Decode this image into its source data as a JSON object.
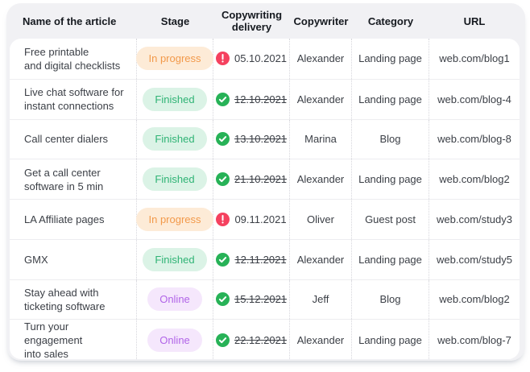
{
  "table": {
    "columns": [
      {
        "key": "name",
        "label": "Name of the article"
      },
      {
        "key": "stage",
        "label": "Stage"
      },
      {
        "key": "delivery",
        "label": "Copywriting delivery"
      },
      {
        "key": "copywriter",
        "label": "Copywriter"
      },
      {
        "key": "category",
        "label": "Category"
      },
      {
        "key": "url",
        "label": "URL"
      }
    ],
    "rows": [
      {
        "name": "Free printable\nand digital checklists",
        "stage": "In progress",
        "stage_type": "in_progress",
        "delivery_date": "05.10.2021",
        "delivery_status": "overdue",
        "copywriter": "Alexander",
        "category": "Landing page",
        "url": "web.com/blog1"
      },
      {
        "name": "Live chat software for\ninstant connections",
        "stage": "Finished",
        "stage_type": "finished",
        "delivery_date": "12.10.2021",
        "delivery_status": "done",
        "copywriter": "Alexander",
        "category": "Landing page",
        "url": "web.com/blog-4"
      },
      {
        "name": "Call center dialers",
        "stage": "Finished",
        "stage_type": "finished",
        "delivery_date": "13.10.2021",
        "delivery_status": "done",
        "copywriter": "Marina",
        "category": "Blog",
        "url": "web.com/blog-8"
      },
      {
        "name": "Get a call center\nsoftware in 5 min",
        "stage": "Finished",
        "stage_type": "finished",
        "delivery_date": "21.10.2021",
        "delivery_status": "done",
        "copywriter": "Alexander",
        "category": "Landing page",
        "url": "web.com/blog2"
      },
      {
        "name": "LA Affiliate pages",
        "stage": "In progress",
        "stage_type": "in_progress",
        "delivery_date": "09.11.2021",
        "delivery_status": "overdue",
        "copywriter": "Oliver",
        "category": "Guest post",
        "url": "web.com/study3"
      },
      {
        "name": "GMX",
        "stage": "Finished",
        "stage_type": "finished",
        "delivery_date": "12.11.2021",
        "delivery_status": "done",
        "copywriter": "Alexander",
        "category": "Landing page",
        "url": "web.com/study5"
      },
      {
        "name": "Stay ahead with\nticketing software",
        "stage": "Online",
        "stage_type": "online",
        "delivery_date": "15.12.2021",
        "delivery_status": "done",
        "copywriter": "Jeff",
        "category": "Blog",
        "url": "web.com/blog2"
      },
      {
        "name": "Turn your engagement\ninto sales",
        "stage": "Online",
        "stage_type": "online",
        "delivery_date": "22.12.2021",
        "delivery_status": "done",
        "copywriter": "Alexander",
        "category": "Landing page",
        "url": "web.com/blog-7"
      }
    ]
  },
  "stage_styles": {
    "in_progress": {
      "bg": "#fdebd7",
      "text": "#f2994a"
    },
    "finished": {
      "bg": "#dbf3e6",
      "text": "#2fb375"
    },
    "online": {
      "bg": "#f5e7fc",
      "text": "#b164e8"
    }
  },
  "status_icons": {
    "overdue": {
      "name": "alert-circle-icon",
      "color": "#f5415f"
    },
    "done": {
      "name": "check-circle-icon",
      "color": "#27b257"
    }
  }
}
